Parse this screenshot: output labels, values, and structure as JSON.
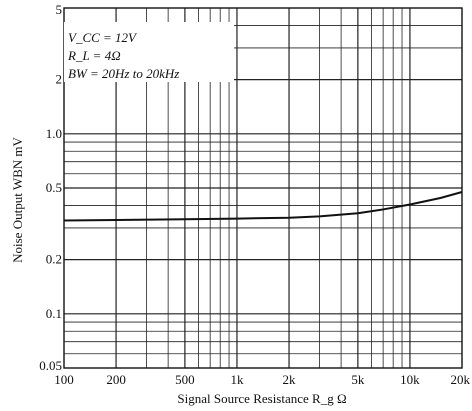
{
  "chart_data": {
    "type": "line",
    "xscale": "log",
    "yscale": "log",
    "xlim": [
      100,
      20000
    ],
    "ylim": [
      0.05,
      5
    ],
    "xlabel": "Signal Source Resistance  R_g  Ω",
    "ylabel": "Noise Output  WBN  mV",
    "x_ticks": [
      100,
      200,
      500,
      1000,
      2000,
      5000,
      10000,
      20000
    ],
    "x_tick_labels": [
      "100",
      "200",
      "500",
      "1k",
      "2k",
      "5k",
      "10k",
      "20k"
    ],
    "y_ticks": [
      0.05,
      0.1,
      0.2,
      0.5,
      1.0,
      2,
      5
    ],
    "y_tick_labels": [
      "0.05",
      "0.1",
      "0.2",
      "0.5",
      "1.0",
      "2",
      "5"
    ],
    "grid": true,
    "legend_placement": "top-left",
    "annotations": [
      "V_CC = 12V",
      "R_L = 4Ω",
      "BW = 20Hz  to  20kHz"
    ],
    "series": [
      {
        "x": [
          100,
          200,
          500,
          1000,
          2000,
          3000,
          5000,
          7000,
          10000,
          15000,
          20000
        ],
        "y": [
          0.33,
          0.332,
          0.335,
          0.338,
          0.342,
          0.348,
          0.362,
          0.38,
          0.405,
          0.44,
          0.475
        ]
      }
    ]
  }
}
